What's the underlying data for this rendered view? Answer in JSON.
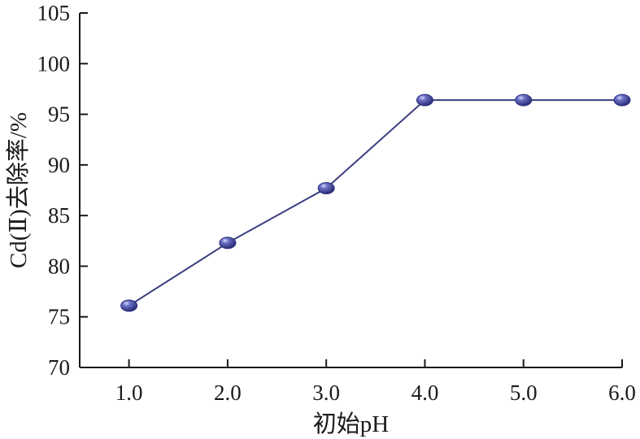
{
  "chart_data": {
    "type": "line",
    "xlabel": "初始pH",
    "ylabel": "Cd(Ⅱ)去除率/%",
    "x": [
      1.0,
      2.0,
      3.0,
      4.0,
      5.0,
      6.0
    ],
    "series": [
      {
        "values": [
          76.1,
          82.3,
          87.7,
          96.4,
          96.4,
          96.4
        ]
      }
    ],
    "xlim": [
      0.5,
      6.0
    ],
    "ylim": [
      70,
      105
    ],
    "x_ticks": [
      "1.0",
      "2.0",
      "3.0",
      "4.0",
      "5.0",
      "6.0"
    ],
    "x_tick_values": [
      1,
      2,
      3,
      4,
      5,
      6
    ],
    "y_ticks": [
      "70",
      "75",
      "80",
      "85",
      "90",
      "95",
      "100",
      "105"
    ],
    "y_tick_values": [
      70,
      75,
      80,
      85,
      90,
      95,
      100,
      105
    ],
    "grid": false,
    "legend": "none",
    "colors": {
      "line": "#3b3f80",
      "marker": "#2d3180",
      "axis": "#1a1a1a"
    }
  }
}
